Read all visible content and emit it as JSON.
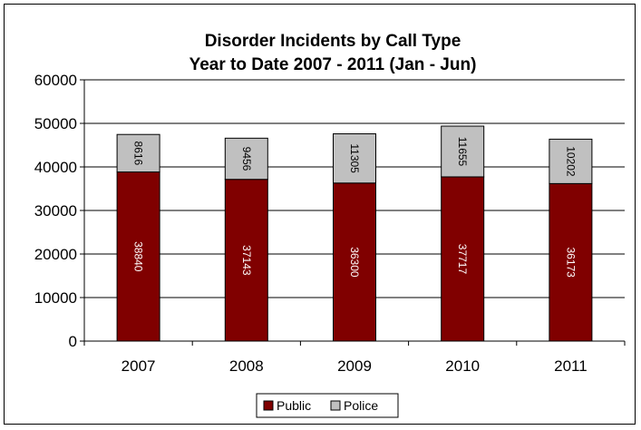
{
  "chart_data": {
    "type": "bar",
    "stacked": true,
    "title": [
      "Disorder Incidents by Call Type",
      "Year to Date 2007 - 2011 (Jan - Jun)"
    ],
    "categories": [
      "2007",
      "2008",
      "2009",
      "2010",
      "2011"
    ],
    "series": [
      {
        "name": "Public",
        "values": [
          38840,
          37143,
          36300,
          37717,
          36173
        ],
        "color": "#800000",
        "label_color": "#ffffff"
      },
      {
        "name": "Police",
        "values": [
          8616,
          9456,
          11305,
          11655,
          10202
        ],
        "color": "#c0c0c0",
        "label_color": "#000000"
      }
    ],
    "ylim": [
      0,
      60000
    ],
    "yticks": [
      "0",
      "10000",
      "20000",
      "30000",
      "40000",
      "50000",
      "60000"
    ],
    "grid": true,
    "legend": "bottom"
  }
}
